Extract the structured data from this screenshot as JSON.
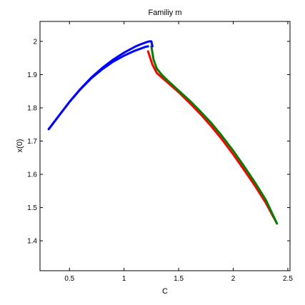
{
  "chart_data": {
    "type": "line",
    "title": "Familiy m",
    "xlabel": "C",
    "ylabel": "x(0)",
    "xlim": [
      0.23,
      2.52
    ],
    "ylim": [
      1.31,
      2.06
    ],
    "xticks": [
      0.5,
      1,
      1.5,
      2,
      2.5
    ],
    "xtick_labels": [
      "0.5",
      "1",
      "1.5",
      "2",
      "2.5"
    ],
    "yticks": [
      1.4,
      1.5,
      1.6,
      1.7,
      1.8,
      1.9,
      2.0
    ],
    "ytick_labels": [
      "1.4",
      "1.5",
      "1.6",
      "1.7",
      "1.8",
      "1.9",
      "2"
    ],
    "grid": false,
    "legend": "none",
    "series": [
      {
        "color": "#ff0000",
        "x": [
          1.22,
          1.26,
          1.3,
          1.35,
          1.4,
          1.5,
          1.6,
          1.7,
          1.8,
          1.9,
          2.0,
          2.1,
          2.2,
          2.3,
          2.4
        ],
        "y": [
          1.97,
          1.93,
          1.905,
          1.89,
          1.876,
          1.847,
          1.815,
          1.781,
          1.744,
          1.704,
          1.66,
          1.613,
          1.565,
          1.513,
          1.452
        ]
      },
      {
        "color": "#008000",
        "x": [
          1.25,
          1.27,
          1.3,
          1.35,
          1.4,
          1.5,
          1.6,
          1.7,
          1.8,
          1.9,
          2.0,
          2.1,
          2.2,
          2.3,
          2.4
        ],
        "y": [
          1.985,
          1.945,
          1.918,
          1.898,
          1.882,
          1.852,
          1.822,
          1.789,
          1.754,
          1.714,
          1.671,
          1.624,
          1.575,
          1.522,
          1.452
        ]
      },
      {
        "color": "#0000ff",
        "x": [
          0.31,
          0.4,
          0.5,
          0.6,
          0.7,
          0.8,
          0.9,
          1.0,
          1.1,
          1.15,
          1.2,
          1.22
        ],
        "y": [
          1.736,
          1.775,
          1.818,
          1.856,
          1.889,
          1.916,
          1.939,
          1.957,
          1.972,
          1.978,
          1.984,
          1.985
        ]
      },
      {
        "color": "#0000ff",
        "x": [
          0.31,
          0.4,
          0.5,
          0.6,
          0.7,
          0.8,
          0.9,
          1.0,
          1.1,
          1.15,
          1.2,
          1.23,
          1.25,
          1.26
        ],
        "y": [
          1.736,
          1.775,
          1.818,
          1.857,
          1.891,
          1.92,
          1.945,
          1.966,
          1.984,
          1.991,
          1.997,
          2.0,
          2.0,
          1.985
        ]
      }
    ]
  }
}
